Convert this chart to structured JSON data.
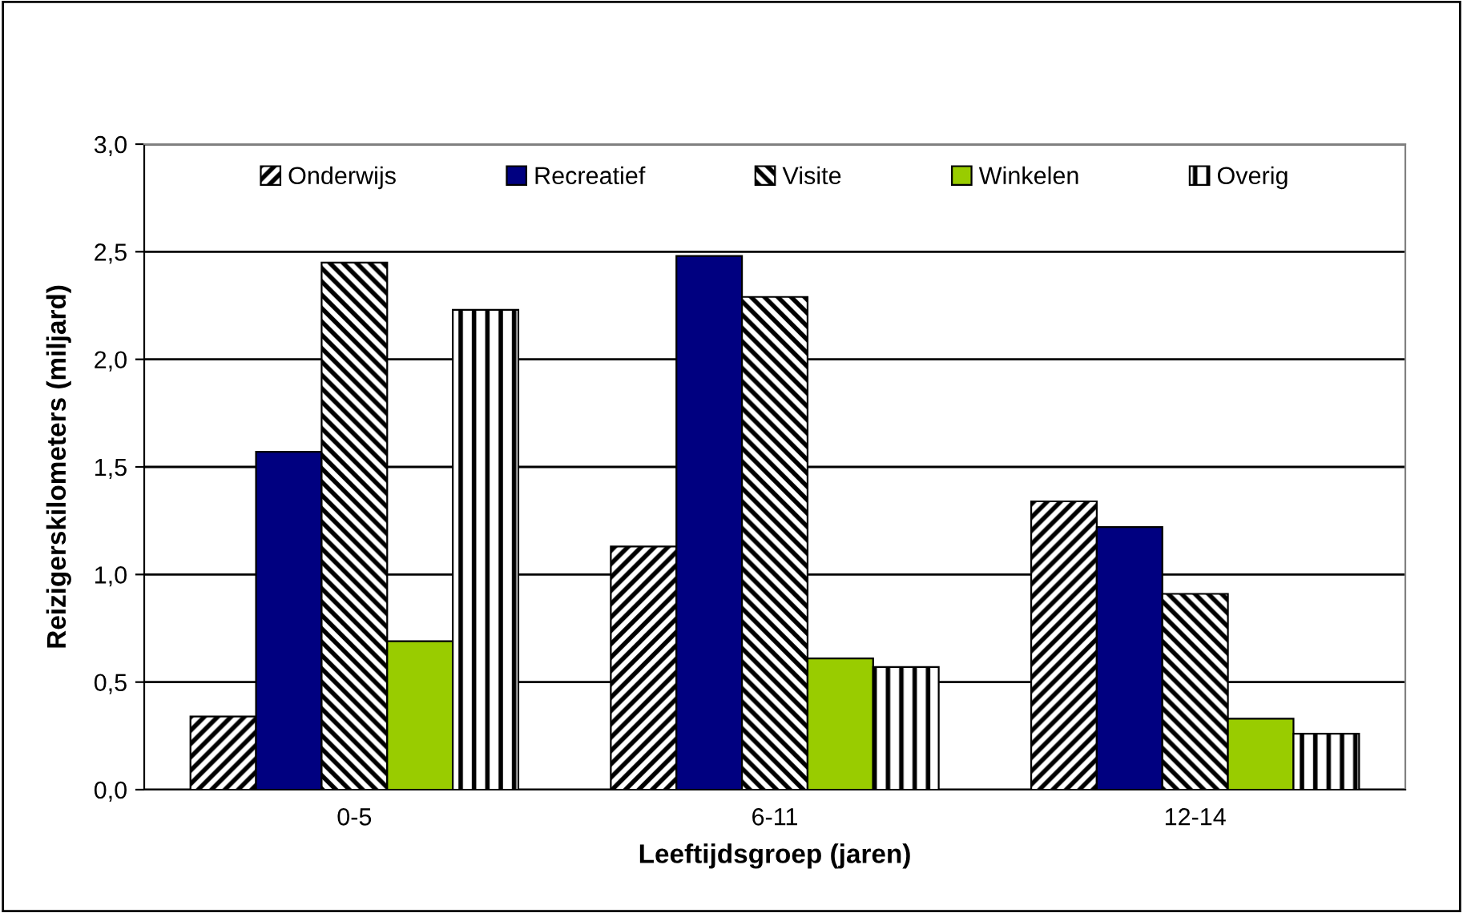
{
  "chart_data": {
    "type": "bar",
    "xlabel": "Leeftijdsgroep (jaren)",
    "ylabel": "Reizigerskilometers (miljard)",
    "categories": [
      "0-5",
      "6-11",
      "12-14"
    ],
    "series": [
      {
        "name": "Onderwijs",
        "color": "#000000",
        "values": [
          0.34,
          1.13,
          1.34
        ]
      },
      {
        "name": "Recreatief",
        "color": "#000080",
        "values": [
          1.57,
          2.48,
          1.22
        ]
      },
      {
        "name": "Visite",
        "color": "#000000",
        "values": [
          2.45,
          2.29,
          0.91
        ]
      },
      {
        "name": "Winkelen",
        "color": "#99cc00",
        "values": [
          0.69,
          0.61,
          0.33
        ]
      },
      {
        "name": "Overig",
        "color": "#000000",
        "values": [
          2.23,
          0.57,
          0.26
        ]
      }
    ],
    "ylim": [
      0,
      3.0
    ],
    "yticks": [
      {
        "value": 0,
        "label": "0,0"
      },
      {
        "value": 0.5,
        "label": "0,5"
      },
      {
        "value": 1.0,
        "label": "1,0"
      },
      {
        "value": 1.5,
        "label": "1,5"
      },
      {
        "value": 2.0,
        "label": "2,0"
      },
      {
        "value": 2.5,
        "label": "2,5"
      },
      {
        "value": 3.0,
        "label": "3,0"
      }
    ],
    "grid": "y",
    "legend": "top"
  }
}
